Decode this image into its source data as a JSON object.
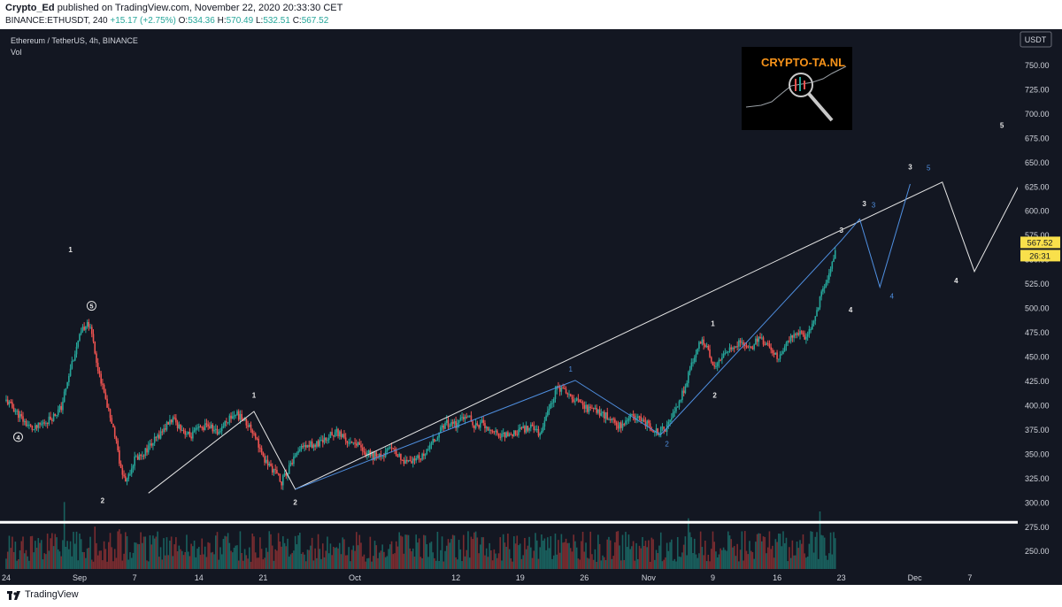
{
  "header": {
    "author": "Crypto_Ed",
    "published_text": "published on TradingView.com, November 22, 2020 20:33:30 CET",
    "symbol_info": "BINANCE:ETHUSDT, 240",
    "change": "+15.17 (+2.75%)",
    "ohlc": [
      {
        "label": "O:",
        "value": "534.36"
      },
      {
        "label": "H:",
        "value": "570.49"
      },
      {
        "label": "L:",
        "value": "532.51"
      },
      {
        "label": "C:",
        "value": "567.52"
      }
    ]
  },
  "legend": {
    "title": "Ethereum / TetherUS, 4h, BINANCE",
    "volume": "Vol"
  },
  "currency": "USDT",
  "watermark_text": "CRYPTO-TA.NL",
  "footer": {
    "brand": "TradingView"
  },
  "colors": {
    "background": "#131722",
    "up": "#26a69a",
    "down": "#ef5350",
    "up_volume": "#1b6d68",
    "down_volume": "#8c3032",
    "wave_white": "#e6e6e6",
    "wave_blue": "#4f8fe0",
    "price_tag": "#f9e04b",
    "accent_orange": "#f7931a"
  },
  "chart_data": {
    "type": "candlestick",
    "title": "Ethereum / TetherUS, 4h, BINANCE",
    "ylim": [
      232,
      780
    ],
    "yticks": [
      250,
      275,
      300,
      325,
      350,
      375,
      400,
      425,
      450,
      475,
      500,
      525,
      550,
      575,
      600,
      625,
      650,
      675,
      700,
      725,
      750
    ],
    "ytick_labels": [
      "250.00",
      "275.00",
      "300.00",
      "325.00",
      "350.00",
      "375.00",
      "400.00",
      "425.00",
      "450.00",
      "475.00",
      "500.00",
      "525.00",
      "550.00",
      "575.00",
      "600.00",
      "625.00",
      "650.00",
      "675.00",
      "700.00",
      "725.00",
      "750.00"
    ],
    "x_tick_labels": [
      {
        "label": "24",
        "day": 0
      },
      {
        "label": "Sep",
        "day": 8
      },
      {
        "label": "7",
        "day": 14
      },
      {
        "label": "14",
        "day": 21
      },
      {
        "label": "21",
        "day": 28
      },
      {
        "label": "Oct",
        "day": 38
      },
      {
        "label": "12",
        "day": 49
      },
      {
        "label": "19",
        "day": 56
      },
      {
        "label": "26",
        "day": 63
      },
      {
        "label": "Nov",
        "day": 70
      },
      {
        "label": "9",
        "day": 77
      },
      {
        "label": "16",
        "day": 84
      },
      {
        "label": "23",
        "day": 91
      },
      {
        "label": "Dec",
        "day": 99
      },
      {
        "label": "7",
        "day": 105
      }
    ],
    "last_price": "567.52",
    "countdown": "26:31",
    "white_horizontal_level": 280,
    "price_path": [
      [
        0,
        405
      ],
      [
        1,
        395
      ],
      [
        2,
        383
      ],
      [
        3,
        375
      ],
      [
        4,
        382
      ],
      [
        5,
        388
      ],
      [
        6,
        398
      ],
      [
        7,
        440
      ],
      [
        8,
        470
      ],
      [
        8.8,
        488
      ],
      [
        9.5,
        468
      ],
      [
        10,
        435
      ],
      [
        11,
        400
      ],
      [
        11.7,
        376
      ],
      [
        12.5,
        335
      ],
      [
        13,
        322
      ],
      [
        14,
        345
      ],
      [
        15,
        352
      ],
      [
        16,
        362
      ],
      [
        17,
        374
      ],
      [
        18,
        386
      ],
      [
        19,
        378
      ],
      [
        20,
        368
      ],
      [
        21,
        376
      ],
      [
        22,
        380
      ],
      [
        23,
        372
      ],
      [
        24,
        385
      ],
      [
        25,
        392
      ],
      [
        26,
        384
      ],
      [
        27,
        373
      ],
      [
        27.5,
        360
      ],
      [
        28,
        345
      ],
      [
        29,
        335
      ],
      [
        30,
        322
      ],
      [
        31,
        338
      ],
      [
        32,
        355
      ],
      [
        33,
        360
      ],
      [
        34,
        360
      ],
      [
        35,
        368
      ],
      [
        36,
        372
      ],
      [
        37,
        365
      ],
      [
        38,
        362
      ],
      [
        39,
        352
      ],
      [
        40,
        348
      ],
      [
        41,
        350
      ],
      [
        42,
        355
      ],
      [
        43,
        345
      ],
      [
        44,
        340
      ],
      [
        45,
        346
      ],
      [
        46,
        356
      ],
      [
        47,
        370
      ],
      [
        48,
        382
      ],
      [
        49,
        380
      ],
      [
        50,
        392
      ],
      [
        51,
        380
      ],
      [
        52,
        382
      ],
      [
        53,
        372
      ],
      [
        54,
        368
      ],
      [
        55,
        370
      ],
      [
        56,
        374
      ],
      [
        57,
        378
      ],
      [
        58,
        371
      ],
      [
        59,
        392
      ],
      [
        60,
        420
      ],
      [
        61,
        412
      ],
      [
        62,
        405
      ],
      [
        63,
        398
      ],
      [
        64,
        396
      ],
      [
        65,
        392
      ],
      [
        66,
        384
      ],
      [
        67,
        378
      ],
      [
        68,
        390
      ],
      [
        69,
        385
      ],
      [
        70,
        380
      ],
      [
        71,
        372
      ],
      [
        72,
        378
      ],
      [
        73,
        396
      ],
      [
        74,
        420
      ],
      [
        75,
        452
      ],
      [
        75.8,
        470
      ],
      [
        76.5,
        455
      ],
      [
        77,
        440
      ],
      [
        78,
        452
      ],
      [
        79,
        462
      ],
      [
        80,
        465
      ],
      [
        81,
        458
      ],
      [
        82,
        470
      ],
      [
        83,
        460
      ],
      [
        84,
        450
      ],
      [
        85,
        462
      ],
      [
        86,
        476
      ],
      [
        87,
        470
      ],
      [
        88,
        485
      ],
      [
        88.7,
        510
      ],
      [
        89.5,
        532
      ],
      [
        90,
        545
      ],
      [
        90.4,
        567
      ]
    ],
    "white_waves": [
      [
        [
          15.5,
          310
        ],
        [
          27,
          394
        ],
        [
          31.5,
          314
        ],
        [
          102,
          630
        ],
        [
          105.5,
          538
        ],
        [
          113,
          675
        ]
      ]
    ],
    "blue_waves": [
      [
        [
          31.5,
          314
        ],
        [
          62,
          426
        ],
        [
          71.3,
          370
        ],
        [
          91,
          570
        ],
        [
          93,
          592
        ],
        [
          95.2,
          522
        ],
        [
          98.5,
          628
        ]
      ]
    ],
    "wave_labels_white": [
      {
        "t": "1",
        "d": 7,
        "p": 558
      },
      {
        "t": "5",
        "d": 9.3,
        "p": 500,
        "circle": true
      },
      {
        "t": "4",
        "d": 1.3,
        "p": 365,
        "circle": true
      },
      {
        "t": "2",
        "d": 10.5,
        "p": 300
      },
      {
        "t": "1",
        "d": 27,
        "p": 408
      },
      {
        "t": "2",
        "d": 31.5,
        "p": 298
      },
      {
        "t": "1",
        "d": 77,
        "p": 482
      },
      {
        "t": "2",
        "d": 77.2,
        "p": 408
      },
      {
        "t": "3",
        "d": 91,
        "p": 578
      },
      {
        "t": "4",
        "d": 92,
        "p": 496
      },
      {
        "t": "3",
        "d": 93.5,
        "p": 605
      },
      {
        "t": "3",
        "d": 98.5,
        "p": 643
      },
      {
        "t": "4",
        "d": 103.5,
        "p": 526
      },
      {
        "t": "5",
        "d": 108.5,
        "p": 686
      }
    ],
    "wave_labels_blue": [
      {
        "t": "1",
        "d": 61.5,
        "p": 435
      },
      {
        "t": "2",
        "d": 72,
        "p": 358
      },
      {
        "t": "3",
        "d": 94.5,
        "p": 604
      },
      {
        "t": "4",
        "d": 96.5,
        "p": 510
      },
      {
        "t": "5",
        "d": 100.5,
        "p": 642
      }
    ]
  }
}
